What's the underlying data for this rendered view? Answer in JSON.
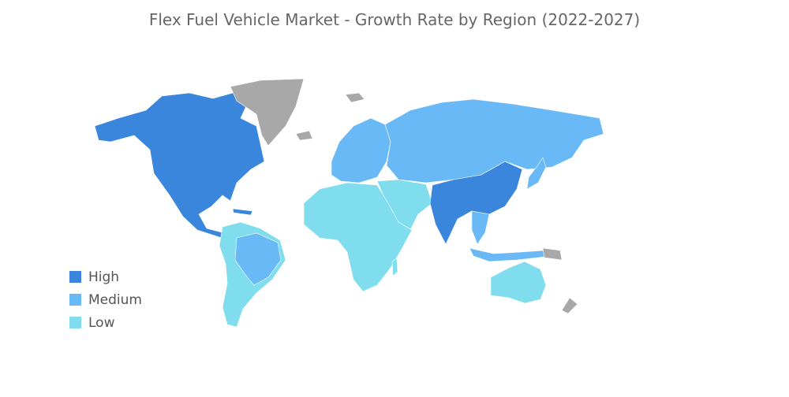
{
  "title": "Flex Fuel Vehicle Market - Growth Rate by Region (2022-2027)",
  "legend": [
    {
      "label": "High",
      "color": "#3b86dd"
    },
    {
      "label": "Medium",
      "color": "#68b9f6"
    },
    {
      "label": "Low",
      "color": "#80dded"
    }
  ]
}
